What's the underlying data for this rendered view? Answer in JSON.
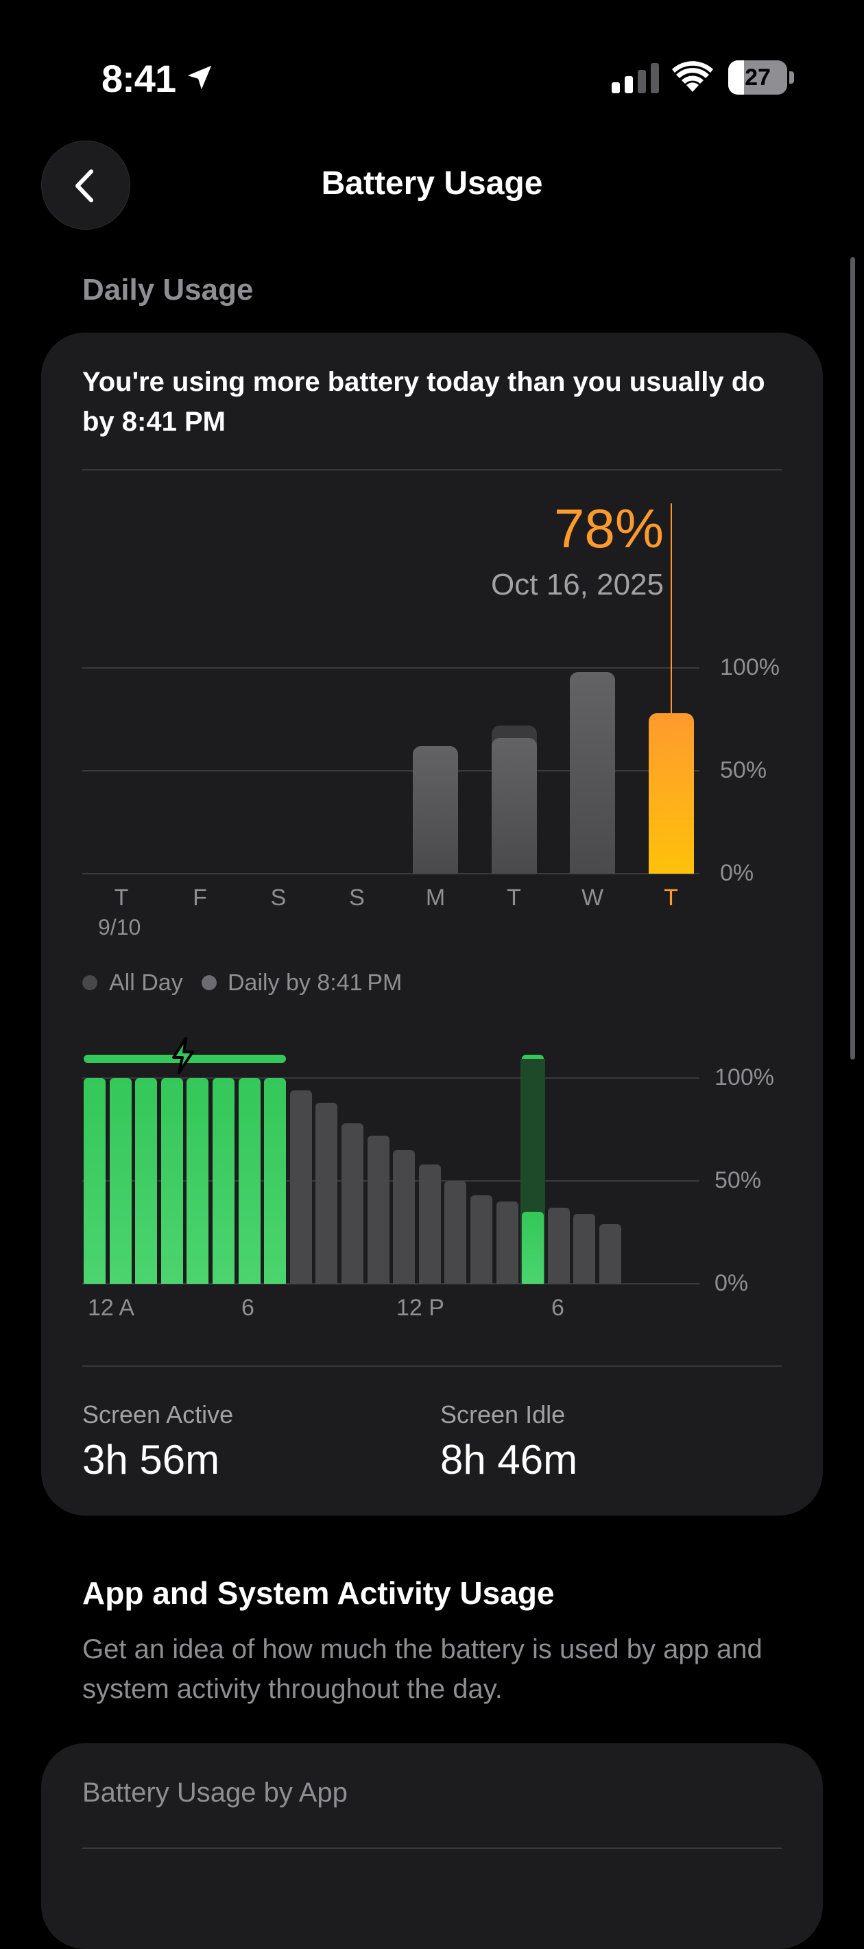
{
  "status_bar": {
    "time": "8:41",
    "battery_level": "27",
    "battery_fraction": 0.27
  },
  "header": {
    "title": "Battery Usage"
  },
  "daily_usage": {
    "section_label": "Daily Usage",
    "message": "You're using more battery today than you usually do by 8:41 PM",
    "selected_pct": "78%",
    "selected_date": "Oct 16, 2025",
    "legend": [
      {
        "label": "All Day",
        "color": "#48484a"
      },
      {
        "label": "Daily by 8:41 PM",
        "color": "#6c6c70"
      }
    ],
    "stats": [
      {
        "label": "Screen Active",
        "value": "3h 56m"
      },
      {
        "label": "Screen Idle",
        "value": "8h 46m"
      }
    ]
  },
  "chart_data": [
    {
      "type": "bar",
      "categories": [
        "T",
        "F",
        "S",
        "S",
        "M",
        "T",
        "W",
        "T"
      ],
      "first_date_label": "9/10",
      "series": [
        {
          "name": "All Day",
          "values": [
            null,
            null,
            null,
            null,
            62,
            72,
            98,
            78
          ]
        },
        {
          "name": "Daily by 8:41 PM",
          "values": [
            null,
            null,
            null,
            null,
            62,
            66,
            98,
            78
          ]
        }
      ],
      "selected_index": 7,
      "ylim": [
        0,
        100
      ],
      "yticks": [
        "100%",
        "50%",
        "0%"
      ],
      "colors": {
        "bar": "#636366",
        "selected_top": "#ff9a2e",
        "selected_bottom": "#ffc20a"
      }
    },
    {
      "type": "bar",
      "x_tick_labels": [
        "12 A",
        "6",
        "12 P",
        "6"
      ],
      "values": [
        100,
        100,
        100,
        100,
        100,
        100,
        100,
        100,
        94,
        88,
        78,
        72,
        65,
        58,
        50,
        43,
        40,
        35,
        37,
        34,
        29
      ],
      "charging": [
        true,
        true,
        true,
        true,
        true,
        true,
        true,
        true,
        false,
        false,
        false,
        false,
        false,
        false,
        false,
        false,
        false,
        true,
        false,
        false,
        false
      ],
      "charging_periods": [
        [
          0,
          7
        ],
        [
          17,
          17
        ]
      ],
      "ylim": [
        0,
        100
      ],
      "yticks": [
        "100%",
        "50%",
        "0%"
      ],
      "colors": {
        "charging": "#34c759",
        "discharging": "#48484a",
        "charging_band": "#1f4a2a"
      }
    }
  ],
  "activity": {
    "title": "App and System Activity Usage",
    "description": "Get an idea of how much the battery is used by app and system activity throughout the day.",
    "card_title": "Battery Usage by App"
  }
}
